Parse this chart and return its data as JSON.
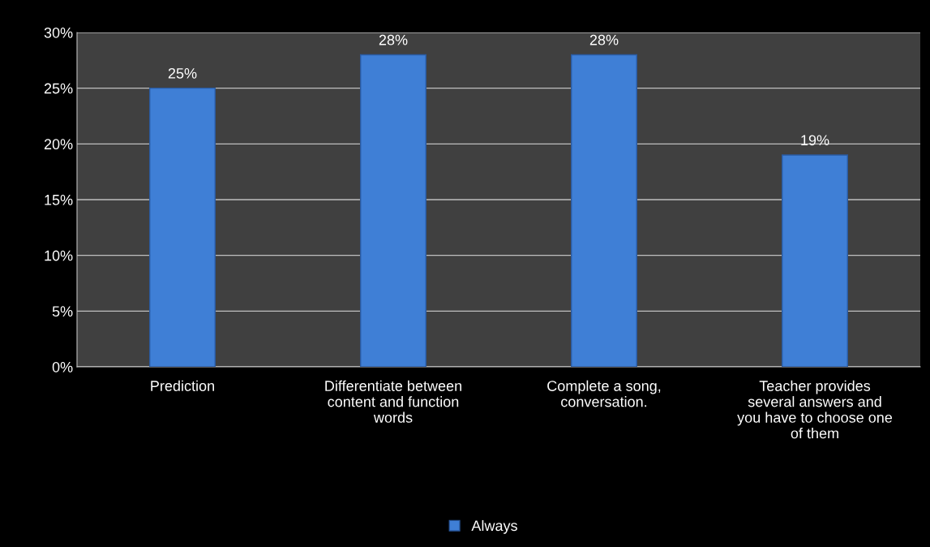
{
  "chart_data": {
    "type": "bar",
    "categories": [
      "Prediction",
      "Differentiate between\ncontent and function\nwords",
      "Complete a song,\nconversation.",
      "Teacher provides\nseveral answers and\nyou have to choose one\nof them"
    ],
    "series": [
      {
        "name": "Always",
        "color": "#3f7fd6",
        "values": [
          25,
          28,
          28,
          19
        ],
        "value_labels": [
          "25%",
          "28%",
          "28%",
          "19%"
        ]
      }
    ],
    "ylim": [
      0,
      30
    ],
    "yticks": [
      {
        "value": 0,
        "label": "0%"
      },
      {
        "value": 5,
        "label": "5%"
      },
      {
        "value": 10,
        "label": "10%"
      },
      {
        "value": 15,
        "label": "15%"
      },
      {
        "value": 20,
        "label": "20%"
      },
      {
        "value": 25,
        "label": "25%"
      },
      {
        "value": 30,
        "label": "30%"
      }
    ],
    "grid": "y",
    "legend": "bottom"
  }
}
